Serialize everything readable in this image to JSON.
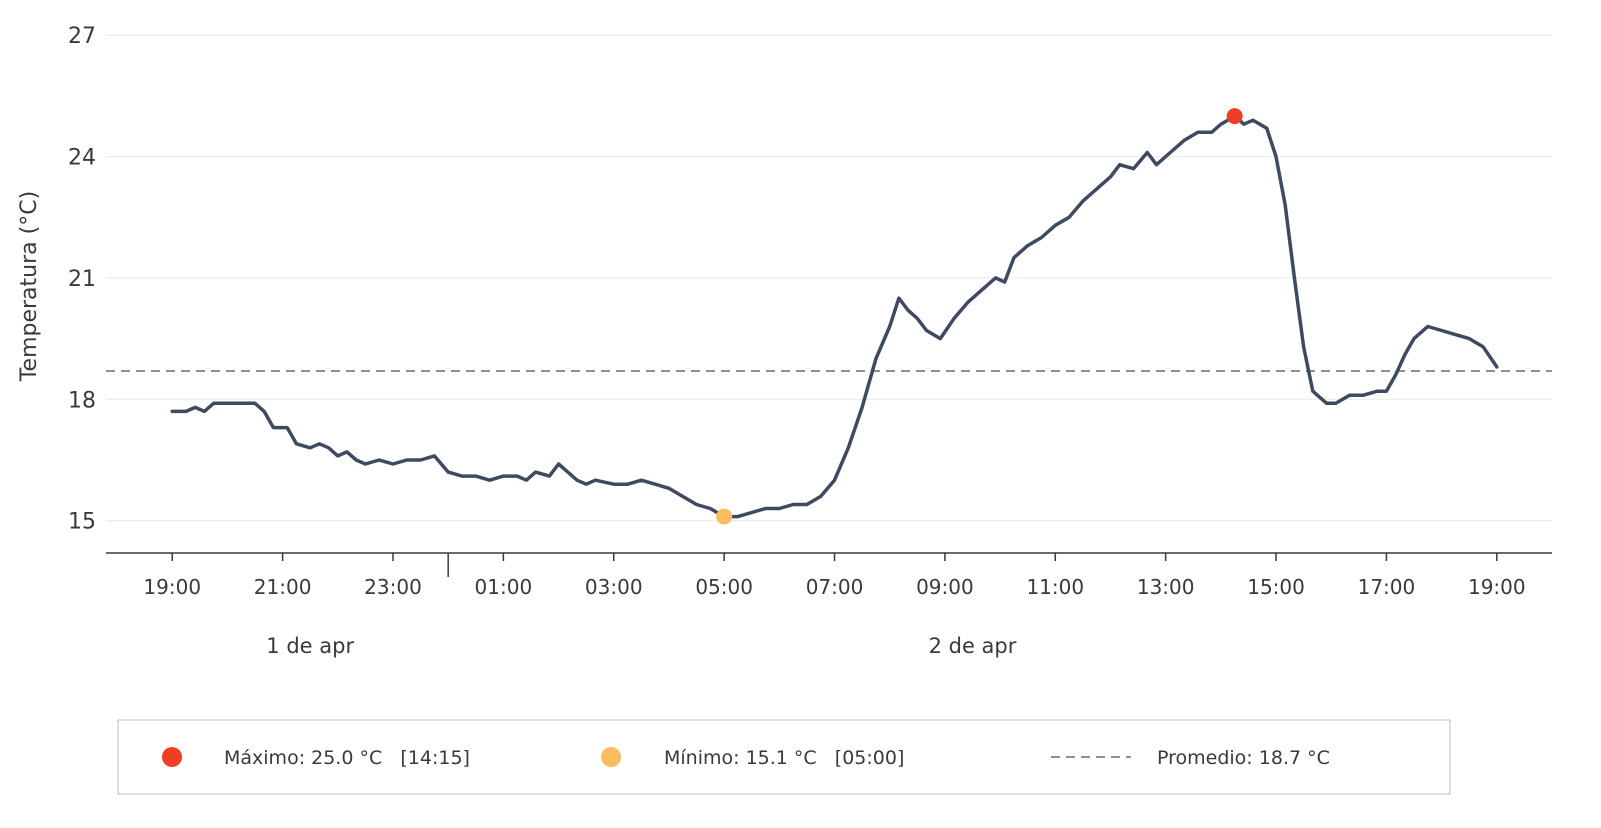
{
  "chart_data": {
    "type": "line",
    "title": "",
    "xlabel": "",
    "ylabel": "Temperatura (°C)",
    "ylim": [
      14.2,
      27.5
    ],
    "yticks": [
      15,
      18,
      21,
      24,
      27
    ],
    "grid": "horizontal",
    "x_range": [
      "2025-04-01T17:48",
      "2025-04-02T20:00"
    ],
    "x_ticks": [
      "2025-04-01T19:00",
      "2025-04-01T21:00",
      "2025-04-01T23:00",
      "2025-04-02T01:00",
      "2025-04-02T03:00",
      "2025-04-02T05:00",
      "2025-04-02T07:00",
      "2025-04-02T09:00",
      "2025-04-02T11:00",
      "2025-04-02T13:00",
      "2025-04-02T15:00",
      "2025-04-02T17:00",
      "2025-04-02T19:00"
    ],
    "x_tick_labels": [
      "19:00",
      "21:00",
      "23:00",
      "01:00",
      "03:00",
      "05:00",
      "07:00",
      "09:00",
      "11:00",
      "13:00",
      "15:00",
      "17:00",
      "19:00"
    ],
    "date_divider": "2025-04-02T00:00",
    "date_labels": [
      {
        "text": "1 de apr",
        "at": "2025-04-01T21:30"
      },
      {
        "text": "2 de apr",
        "at": "2025-04-02T09:30"
      }
    ],
    "series": [
      {
        "color": "#3f4a60",
        "points": [
          [
            "2025-04-01T19:00",
            17.7
          ],
          [
            "2025-04-01T19:15",
            17.7
          ],
          [
            "2025-04-01T19:25",
            17.8
          ],
          [
            "2025-04-01T19:35",
            17.7
          ],
          [
            "2025-04-01T19:45",
            17.9
          ],
          [
            "2025-04-01T20:00",
            17.9
          ],
          [
            "2025-04-01T20:15",
            17.9
          ],
          [
            "2025-04-01T20:30",
            17.9
          ],
          [
            "2025-04-01T20:40",
            17.7
          ],
          [
            "2025-04-01T20:50",
            17.3
          ],
          [
            "2025-04-01T21:05",
            17.3
          ],
          [
            "2025-04-01T21:15",
            16.9
          ],
          [
            "2025-04-01T21:30",
            16.8
          ],
          [
            "2025-04-01T21:40",
            16.9
          ],
          [
            "2025-04-01T21:50",
            16.8
          ],
          [
            "2025-04-01T22:00",
            16.6
          ],
          [
            "2025-04-01T22:10",
            16.7
          ],
          [
            "2025-04-01T22:20",
            16.5
          ],
          [
            "2025-04-01T22:30",
            16.4
          ],
          [
            "2025-04-01T22:45",
            16.5
          ],
          [
            "2025-04-01T23:00",
            16.4
          ],
          [
            "2025-04-01T23:15",
            16.5
          ],
          [
            "2025-04-01T23:30",
            16.5
          ],
          [
            "2025-04-01T23:45",
            16.6
          ],
          [
            "2025-04-02T00:00",
            16.2
          ],
          [
            "2025-04-02T00:15",
            16.1
          ],
          [
            "2025-04-02T00:30",
            16.1
          ],
          [
            "2025-04-02T00:45",
            16.0
          ],
          [
            "2025-04-02T01:00",
            16.1
          ],
          [
            "2025-04-02T01:15",
            16.1
          ],
          [
            "2025-04-02T01:25",
            16.0
          ],
          [
            "2025-04-02T01:35",
            16.2
          ],
          [
            "2025-04-02T01:50",
            16.1
          ],
          [
            "2025-04-02T02:00",
            16.4
          ],
          [
            "2025-04-02T02:10",
            16.2
          ],
          [
            "2025-04-02T02:20",
            16.0
          ],
          [
            "2025-04-02T02:30",
            15.9
          ],
          [
            "2025-04-02T02:40",
            16.0
          ],
          [
            "2025-04-02T03:00",
            15.9
          ],
          [
            "2025-04-02T03:15",
            15.9
          ],
          [
            "2025-04-02T03:30",
            16.0
          ],
          [
            "2025-04-02T03:45",
            15.9
          ],
          [
            "2025-04-02T04:00",
            15.8
          ],
          [
            "2025-04-02T04:15",
            15.6
          ],
          [
            "2025-04-02T04:30",
            15.4
          ],
          [
            "2025-04-02T04:45",
            15.3
          ],
          [
            "2025-04-02T05:00",
            15.1
          ],
          [
            "2025-04-02T05:15",
            15.1
          ],
          [
            "2025-04-02T05:30",
            15.2
          ],
          [
            "2025-04-02T05:45",
            15.3
          ],
          [
            "2025-04-02T06:00",
            15.3
          ],
          [
            "2025-04-02T06:15",
            15.4
          ],
          [
            "2025-04-02T06:30",
            15.4
          ],
          [
            "2025-04-02T06:45",
            15.6
          ],
          [
            "2025-04-02T07:00",
            16.0
          ],
          [
            "2025-04-02T07:15",
            16.8
          ],
          [
            "2025-04-02T07:30",
            17.8
          ],
          [
            "2025-04-02T07:45",
            19.0
          ],
          [
            "2025-04-02T08:00",
            19.8
          ],
          [
            "2025-04-02T08:10",
            20.5
          ],
          [
            "2025-04-02T08:20",
            20.2
          ],
          [
            "2025-04-02T08:30",
            20.0
          ],
          [
            "2025-04-02T08:40",
            19.7
          ],
          [
            "2025-04-02T08:55",
            19.5
          ],
          [
            "2025-04-02T09:10",
            20.0
          ],
          [
            "2025-04-02T09:25",
            20.4
          ],
          [
            "2025-04-02T09:40",
            20.7
          ],
          [
            "2025-04-02T09:55",
            21.0
          ],
          [
            "2025-04-02T10:05",
            20.9
          ],
          [
            "2025-04-02T10:15",
            21.5
          ],
          [
            "2025-04-02T10:30",
            21.8
          ],
          [
            "2025-04-02T10:45",
            22.0
          ],
          [
            "2025-04-02T11:00",
            22.3
          ],
          [
            "2025-04-02T11:15",
            22.5
          ],
          [
            "2025-04-02T11:30",
            22.9
          ],
          [
            "2025-04-02T11:45",
            23.2
          ],
          [
            "2025-04-02T12:00",
            23.5
          ],
          [
            "2025-04-02T12:10",
            23.8
          ],
          [
            "2025-04-02T12:25",
            23.7
          ],
          [
            "2025-04-02T12:40",
            24.1
          ],
          [
            "2025-04-02T12:50",
            23.8
          ],
          [
            "2025-04-02T13:05",
            24.1
          ],
          [
            "2025-04-02T13:20",
            24.4
          ],
          [
            "2025-04-02T13:35",
            24.6
          ],
          [
            "2025-04-02T13:50",
            24.6
          ],
          [
            "2025-04-02T14:00",
            24.8
          ],
          [
            "2025-04-02T14:15",
            25.0
          ],
          [
            "2025-04-02T14:25",
            24.8
          ],
          [
            "2025-04-02T14:35",
            24.9
          ],
          [
            "2025-04-02T14:50",
            24.7
          ],
          [
            "2025-04-02T15:00",
            24.0
          ],
          [
            "2025-04-02T15:10",
            22.8
          ],
          [
            "2025-04-02T15:20",
            21.0
          ],
          [
            "2025-04-02T15:30",
            19.3
          ],
          [
            "2025-04-02T15:40",
            18.2
          ],
          [
            "2025-04-02T15:55",
            17.9
          ],
          [
            "2025-04-02T16:05",
            17.9
          ],
          [
            "2025-04-02T16:20",
            18.1
          ],
          [
            "2025-04-02T16:35",
            18.1
          ],
          [
            "2025-04-02T16:50",
            18.2
          ],
          [
            "2025-04-02T17:00",
            18.2
          ],
          [
            "2025-04-02T17:10",
            18.6
          ],
          [
            "2025-04-02T17:20",
            19.1
          ],
          [
            "2025-04-02T17:30",
            19.5
          ],
          [
            "2025-04-02T17:45",
            19.8
          ],
          [
            "2025-04-02T18:00",
            19.7
          ],
          [
            "2025-04-02T18:15",
            19.6
          ],
          [
            "2025-04-02T18:30",
            19.5
          ],
          [
            "2025-04-02T18:45",
            19.3
          ],
          [
            "2025-04-02T19:00",
            18.8
          ]
        ]
      }
    ],
    "max_marker": {
      "x": "2025-04-02T14:15",
      "y": 25.0,
      "color": "#f03e25"
    },
    "min_marker": {
      "x": "2025-04-02T05:00",
      "y": 15.1,
      "color": "#fbbb5f"
    },
    "average": {
      "y": 18.7,
      "color": "#8e8e93"
    },
    "legend": {
      "placement": "bottom",
      "items": [
        {
          "text": "Máximo: 25.0 °C   [14:15]",
          "symbol": "dot",
          "color": "#f03e25"
        },
        {
          "text": "Mínimo: 15.1 °C   [05:00]",
          "symbol": "dot",
          "color": "#fbbb5f"
        },
        {
          "text": "Promedio: 18.7 °C",
          "symbol": "dashed-line",
          "color": "#8e8e93"
        }
      ]
    }
  }
}
